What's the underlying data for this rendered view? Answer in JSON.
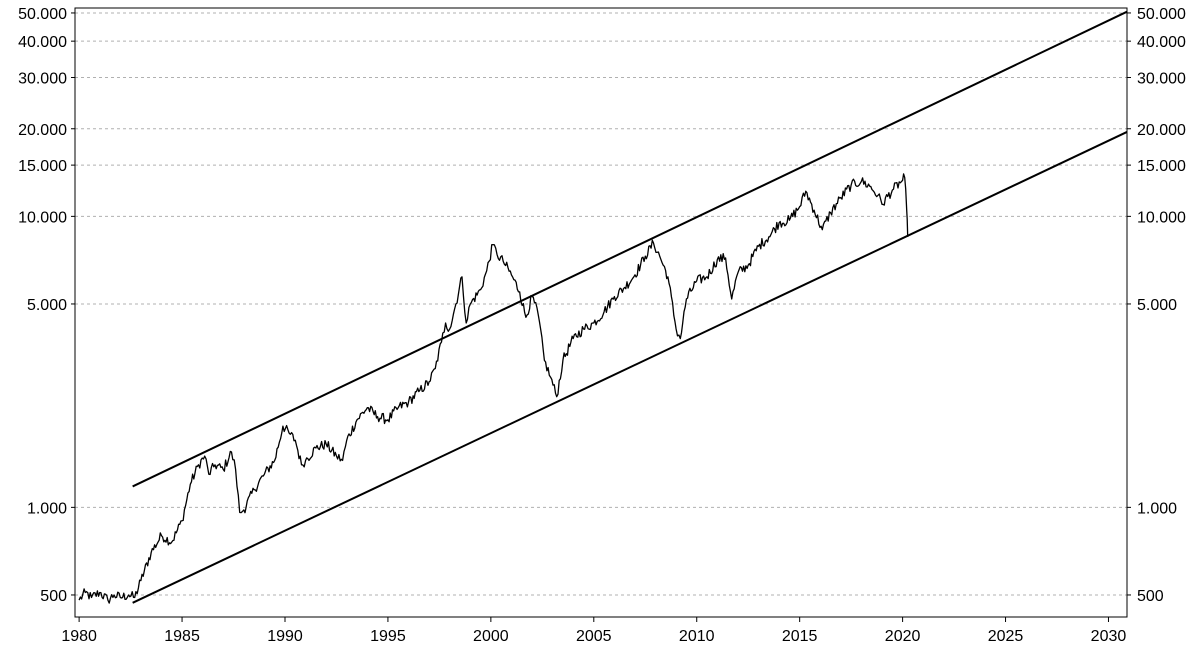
{
  "chart_data": {
    "type": "line",
    "title": "",
    "xlabel": "",
    "ylabel": "",
    "y_scale": "log",
    "grid": true,
    "legend": "none",
    "xlim": [
      1979.8,
      2030.9
    ],
    "ylim": [
      420,
      52000
    ],
    "x_ticks": [
      1980,
      1985,
      1990,
      1995,
      2000,
      2005,
      2010,
      2015,
      2020,
      2025,
      2030
    ],
    "x_tick_labels": [
      "1980",
      "1985",
      "1990",
      "1995",
      "2000",
      "2005",
      "2010",
      "2015",
      "2020",
      "2025",
      "2030"
    ],
    "y_ticks": [
      500,
      1000,
      5000,
      10000,
      15000,
      20000,
      30000,
      40000,
      50000
    ],
    "y_tick_labels": [
      "500",
      "1.000",
      "5.000",
      "10.000",
      "15.000",
      "20.000",
      "30.000",
      "40.000",
      "50.000"
    ],
    "series": [
      {
        "x": [
          1980.0,
          1980.3,
          1980.6,
          1981.0,
          1981.4,
          1981.7,
          1982.0,
          1982.4,
          1982.7,
          1983.0,
          1983.5,
          1984.0,
          1984.5,
          1985.0,
          1985.4,
          1985.8,
          1986.1,
          1986.3,
          1986.6,
          1987.0,
          1987.4,
          1987.6,
          1987.8,
          1988.0,
          1988.5,
          1989.0,
          1989.5,
          1989.9,
          1990.2,
          1990.5,
          1990.8,
          1991.0,
          1991.5,
          1992.0,
          1992.5,
          1992.8,
          1993.0,
          1993.5,
          1994.0,
          1994.5,
          1995.0,
          1995.5,
          1996.0,
          1996.5,
          1997.0,
          1997.3,
          1997.6,
          1997.8,
          1998.0,
          1998.3,
          1998.6,
          1998.8,
          1999.0,
          1999.5,
          1999.8,
          2000.1,
          2000.3,
          2000.6,
          2001.0,
          2001.4,
          2001.7,
          2002.0,
          2002.3,
          2002.6,
          2002.9,
          2003.2,
          2003.5,
          2004.0,
          2004.5,
          2005.0,
          2005.5,
          2006.0,
          2006.5,
          2007.0,
          2007.5,
          2007.9,
          2008.2,
          2008.6,
          2009.0,
          2009.2,
          2009.5,
          2010.0,
          2010.5,
          2011.0,
          2011.4,
          2011.7,
          2012.0,
          2012.5,
          2013.0,
          2013.5,
          2014.0,
          2014.5,
          2015.0,
          2015.3,
          2015.7,
          2016.1,
          2016.5,
          2017.0,
          2017.5,
          2018.0,
          2018.4,
          2018.8,
          2019.0,
          2019.5,
          2020.0,
          2020.1,
          2020.2,
          2020.25
        ],
        "values": [
          480,
          510,
          490,
          510,
          480,
          500,
          490,
          500,
          490,
          560,
          700,
          800,
          760,
          900,
          1200,
          1400,
          1500,
          1300,
          1400,
          1350,
          1550,
          1350,
          960,
          980,
          1150,
          1300,
          1450,
          1900,
          1800,
          1700,
          1400,
          1450,
          1600,
          1650,
          1500,
          1450,
          1700,
          2000,
          2200,
          2050,
          2000,
          2200,
          2300,
          2500,
          2700,
          3000,
          3700,
          4300,
          4100,
          5000,
          6200,
          4300,
          5000,
          5600,
          6500,
          8000,
          7400,
          7000,
          6300,
          5500,
          4500,
          5300,
          4600,
          3200,
          2800,
          2400,
          3200,
          3800,
          4100,
          4300,
          4700,
          5300,
          5700,
          6300,
          7300,
          8100,
          7300,
          6200,
          4100,
          3800,
          5200,
          6000,
          6200,
          7100,
          7200,
          5200,
          6400,
          6800,
          7900,
          8500,
          9500,
          9700,
          10800,
          12200,
          10500,
          9000,
          10300,
          11600,
          12800,
          13200,
          12700,
          11800,
          11000,
          12300,
          13300,
          13600,
          10500,
          8500
        ]
      }
    ],
    "trend_lines": [
      {
        "x": [
          1982.6,
          2030.9
        ],
        "values": [
          1180,
          50500
        ]
      },
      {
        "x": [
          1982.6,
          2030.9
        ],
        "values": [
          470,
          19500
        ]
      }
    ]
  }
}
